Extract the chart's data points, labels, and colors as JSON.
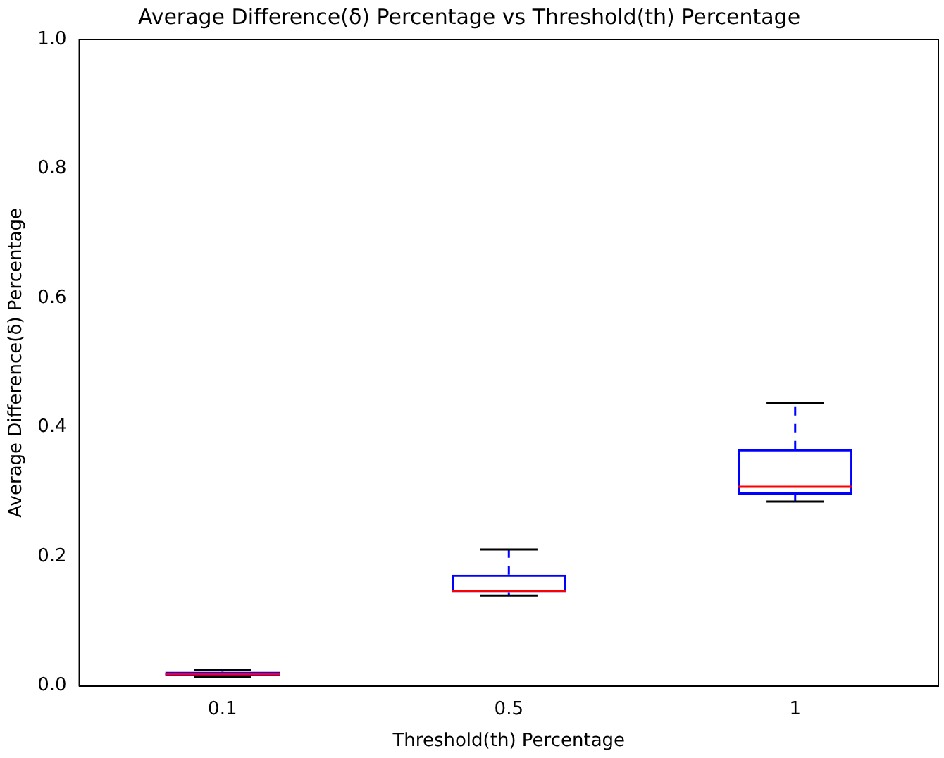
{
  "chart_data": {
    "type": "box",
    "title": "Average Difference(δ) Percentage vs Threshold(th) Percentage",
    "xlabel": "Threshold(th) Percentage",
    "ylabel": "Average Difference(δ) Percentage",
    "categories": [
      "0.1",
      "0.5",
      "1"
    ],
    "boxes": [
      {
        "low": 0.014,
        "q1": 0.015,
        "median": 0.018,
        "q3": 0.022,
        "high": 0.024
      },
      {
        "low": 0.14,
        "q1": 0.144,
        "median": 0.147,
        "q3": 0.172,
        "high": 0.211
      },
      {
        "low": 0.285,
        "q1": 0.296,
        "median": 0.308,
        "q3": 0.366,
        "high": 0.437
      }
    ],
    "color": "#0000ff",
    "ylim": [
      0,
      1
    ],
    "yticks": [
      {
        "value": 0,
        "label": "0.0"
      },
      {
        "value": 0.2,
        "label": "0.2"
      },
      {
        "value": 0.4,
        "label": "0.4"
      },
      {
        "value": 0.6,
        "label": "0.6"
      },
      {
        "value": 0.8,
        "label": "0.8"
      },
      {
        "value": 1,
        "label": "1.0"
      }
    ],
    "grid": false,
    "legend": false
  }
}
